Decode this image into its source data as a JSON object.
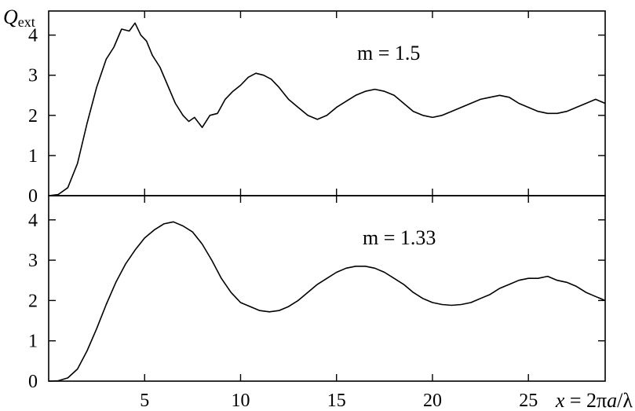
{
  "chart_data": {
    "type": "line",
    "xlabel": "x = 2πa/λ",
    "ylabel": "Q_ext",
    "xlim": [
      0,
      29
    ],
    "x_ticks": [
      5,
      10,
      15,
      20,
      25
    ],
    "panels": [
      {
        "annotation": "m = 1.5",
        "ylim": [
          0,
          4.6
        ],
        "y_ticks": [
          0,
          1,
          2,
          3,
          4
        ],
        "series": [
          {
            "x": [
              0,
              0.5,
              1,
              1.5,
              2,
              2.5,
              3,
              3.4,
              3.8,
              4.2,
              4.5,
              4.8,
              5.1,
              5.4,
              5.8,
              6.2,
              6.6,
              7,
              7.3,
              7.6,
              8,
              8.4,
              8.8,
              9.2,
              9.6,
              10,
              10.4,
              10.8,
              11.2,
              11.6,
              12,
              12.5,
              13,
              13.5,
              14,
              14.5,
              15,
              15.5,
              16,
              16.5,
              17,
              17.5,
              18,
              18.5,
              19,
              19.5,
              20,
              20.5,
              21,
              21.5,
              22,
              22.5,
              23,
              23.5,
              24,
              24.5,
              25,
              25.5,
              26,
              26.5,
              27,
              27.5,
              28,
              28.5,
              29
            ],
            "y": [
              0,
              0.03,
              0.2,
              0.8,
              1.8,
              2.7,
              3.4,
              3.7,
              4.15,
              4.1,
              4.3,
              4.0,
              3.85,
              3.5,
              3.2,
              2.75,
              2.3,
              2.0,
              1.85,
              1.95,
              1.7,
              2.0,
              2.05,
              2.4,
              2.6,
              2.75,
              2.95,
              3.05,
              3.0,
              2.9,
              2.7,
              2.4,
              2.2,
              2.0,
              1.9,
              2.0,
              2.2,
              2.35,
              2.5,
              2.6,
              2.65,
              2.6,
              2.5,
              2.3,
              2.1,
              2.0,
              1.95,
              2.0,
              2.1,
              2.2,
              2.3,
              2.4,
              2.45,
              2.5,
              2.45,
              2.3,
              2.2,
              2.1,
              2.05,
              2.05,
              2.1,
              2.2,
              2.3,
              2.4,
              2.3
            ]
          }
        ]
      },
      {
        "annotation": "m = 1.33",
        "ylim": [
          0,
          4.6
        ],
        "y_ticks": [
          0,
          1,
          2,
          3,
          4
        ],
        "series": [
          {
            "x": [
              0,
              0.5,
              1,
              1.5,
              2,
              2.5,
              3,
              3.5,
              4,
              4.5,
              5,
              5.5,
              6,
              6.5,
              7,
              7.5,
              8,
              8.5,
              9,
              9.5,
              10,
              10.5,
              11,
              11.5,
              12,
              12.5,
              13,
              13.5,
              14,
              14.5,
              15,
              15.5,
              16,
              16.5,
              17,
              17.5,
              18,
              18.5,
              19,
              19.5,
              20,
              20.5,
              21,
              21.5,
              22,
              22.5,
              23,
              23.5,
              24,
              24.5,
              25,
              25.5,
              26,
              26.5,
              27,
              27.5,
              28,
              28.5,
              29
            ],
            "y": [
              0,
              0.01,
              0.08,
              0.3,
              0.75,
              1.3,
              1.9,
              2.45,
              2.9,
              3.25,
              3.55,
              3.75,
              3.9,
              3.95,
              3.85,
              3.7,
              3.4,
              3.0,
              2.55,
              2.2,
              1.95,
              1.85,
              1.75,
              1.72,
              1.75,
              1.85,
              2.0,
              2.2,
              2.4,
              2.55,
              2.7,
              2.8,
              2.85,
              2.85,
              2.8,
              2.7,
              2.55,
              2.4,
              2.2,
              2.05,
              1.95,
              1.9,
              1.88,
              1.9,
              1.95,
              2.05,
              2.15,
              2.3,
              2.4,
              2.5,
              2.55,
              2.55,
              2.6,
              2.5,
              2.45,
              2.35,
              2.2,
              2.1,
              2.0
            ]
          }
        ]
      }
    ]
  }
}
